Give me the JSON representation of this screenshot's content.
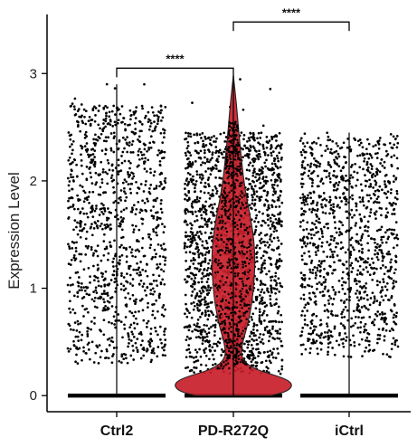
{
  "chart_data": {
    "type": "violin",
    "title": "",
    "xlabel": "",
    "ylabel": "Expression Level",
    "ylim": [
      -0.15,
      3.55
    ],
    "yticks": [
      0,
      1,
      2,
      3
    ],
    "grid": false,
    "legend": "none",
    "categories": [
      "Ctrl2",
      "PD-R272Q",
      "iCtrl"
    ],
    "groups": [
      {
        "category": "Ctrl2",
        "max": 2.9,
        "violin_visible": false,
        "zero_fraction": 0.6,
        "point_range": [
          0.3,
          2.7
        ],
        "points": 1100,
        "seed": 11
      },
      {
        "category": "PD-R272Q",
        "max": 2.98,
        "violin_visible": true,
        "violin_fill": "#c81e2a",
        "zero_fraction": 0.5,
        "point_range": [
          0.2,
          2.45
        ],
        "points": 1700,
        "seed": 23,
        "density": [
          [
            0.0,
            0.35
          ],
          [
            0.04,
            0.5
          ],
          [
            0.1,
            0.55
          ],
          [
            0.16,
            0.48
          ],
          [
            0.25,
            0.18
          ],
          [
            0.35,
            0.07
          ],
          [
            0.48,
            0.08
          ],
          [
            0.65,
            0.13
          ],
          [
            0.85,
            0.17
          ],
          [
            1.05,
            0.19
          ],
          [
            1.25,
            0.2
          ],
          [
            1.45,
            0.19
          ],
          [
            1.65,
            0.16
          ],
          [
            1.85,
            0.12
          ],
          [
            2.05,
            0.09
          ],
          [
            2.25,
            0.07
          ],
          [
            2.45,
            0.05
          ],
          [
            2.7,
            0.03
          ],
          [
            2.98,
            0.0
          ]
        ]
      },
      {
        "category": "iCtrl",
        "max": 2.45,
        "violin_visible": false,
        "zero_fraction": 0.6,
        "point_range": [
          0.35,
          2.4
        ],
        "points": 1100,
        "seed": 37
      }
    ],
    "comparisons": [
      {
        "from": "Ctrl2",
        "to": "PD-R272Q",
        "label": "****",
        "y": 3.05
      },
      {
        "from": "PD-R272Q",
        "to": "iCtrl",
        "label": "****",
        "y": 3.48
      }
    ],
    "colors": {
      "points": "#000000",
      "axis": "#000000"
    }
  }
}
